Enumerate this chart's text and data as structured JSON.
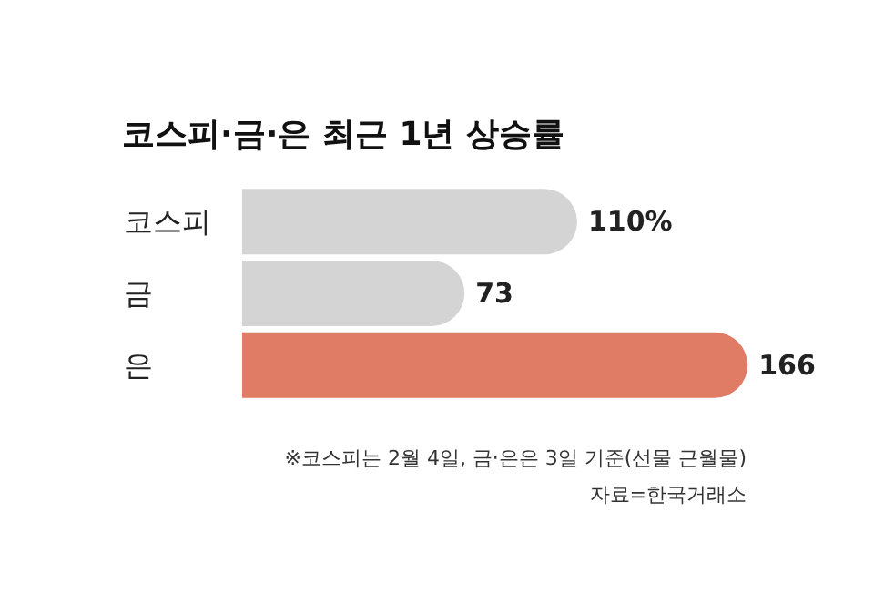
{
  "chart_data": {
    "type": "bar",
    "orientation": "horizontal",
    "title": "코스피·금·은 최근 1년 상승률",
    "categories": [
      "코스피",
      "금",
      "은"
    ],
    "values": [
      110,
      73,
      166
    ],
    "value_labels": [
      "110%",
      "73",
      "166"
    ],
    "colors": [
      "#d4d4d4",
      "#d4d4d4",
      "#e07b65"
    ],
    "annotations": [
      "※코스피는 2월 4일, 금·은은 3일 기준(선물 근월물)",
      "자료=한국거래소"
    ]
  }
}
